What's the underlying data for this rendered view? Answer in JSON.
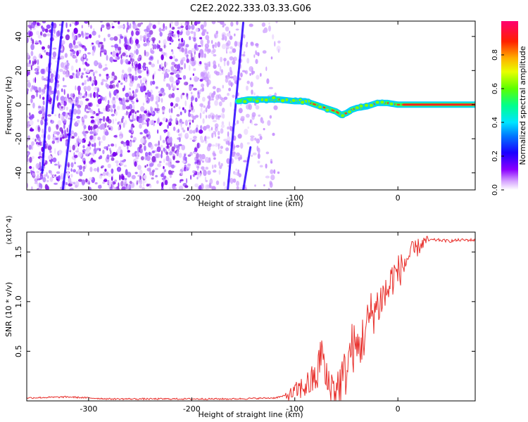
{
  "figure": {
    "title": "C2E2.2022.333.03.33.G06"
  },
  "chart_data": [
    {
      "type": "heatmap",
      "xlabel": "Height of straight line (km)",
      "ylabel": "Frequency (Hz)",
      "xlim": [
        -360,
        75
      ],
      "ylim": [
        -50,
        49
      ],
      "xticks": [
        "-300",
        "-200",
        "-100",
        "0"
      ],
      "xtick_values": [
        -300,
        -200,
        -100,
        0
      ],
      "yticks": [
        "40",
        "20",
        "0",
        "-20",
        "-40"
      ],
      "ytick_values": [
        40,
        20,
        0,
        -20,
        -40
      ],
      "colorbar": {
        "label": "Normalized spectral amplitude",
        "range": [
          0,
          1
        ],
        "ticks": [
          "0.0",
          "0.2",
          "0.4",
          "0.6",
          "0.8"
        ],
        "tick_values": [
          0.0,
          0.2,
          0.4,
          0.6,
          0.8
        ],
        "colormap": "rainbow (white-violet-blue-cyan-green-yellow-red-magenta)"
      },
      "features": {
        "main_signal_track": {
          "x": [
            -155,
            -145,
            -130,
            -115,
            -100,
            -90,
            -80,
            -70,
            -60,
            -55,
            -50,
            -45,
            -40,
            -30,
            -20,
            -10,
            0,
            20,
            40,
            60,
            75
          ],
          "y": [
            2,
            3,
            3,
            3,
            2,
            2,
            0,
            -2,
            -4,
            -6,
            -5,
            -3,
            -2,
            -1,
            1,
            1,
            0,
            0,
            0,
            0,
            0
          ]
        },
        "noise_region_x": [
          -360,
          -115
        ]
      }
    },
    {
      "type": "line",
      "xlabel": "Height of straight line (km)",
      "ylabel": "SNR (10 * v/v)",
      "y_multiplier": "(x10^4)",
      "xlim": [
        -360,
        75
      ],
      "ylim": [
        0,
        1.7
      ],
      "xticks": [
        "-300",
        "-200",
        "-100",
        "0"
      ],
      "xtick_values": [
        -300,
        -200,
        -100,
        0
      ],
      "yticks": [
        "0.5",
        "1.0",
        "1.5"
      ],
      "ytick_values": [
        0.5,
        1.0,
        1.5
      ],
      "series": [
        {
          "color": "#e8302c",
          "x": [
            -360,
            -320,
            -280,
            -240,
            -200,
            -160,
            -120,
            -105,
            -95,
            -85,
            -78,
            -74,
            -70,
            -65,
            -60,
            -55,
            -50,
            -45,
            -40,
            -35,
            -30,
            -25,
            -20,
            -15,
            -10,
            -5,
            0,
            5,
            10,
            15,
            20,
            25,
            30,
            40,
            50,
            60,
            75
          ],
          "y": [
            0.03,
            0.04,
            0.02,
            0.02,
            0.02,
            0.02,
            0.03,
            0.06,
            0.12,
            0.18,
            0.25,
            0.55,
            0.2,
            0.15,
            0.12,
            0.2,
            0.3,
            0.55,
            0.5,
            0.6,
            0.75,
            0.9,
            0.95,
            1.05,
            1.1,
            1.25,
            1.3,
            1.35,
            1.45,
            1.5,
            1.55,
            1.6,
            1.62,
            1.62,
            1.61,
            1.62,
            1.62
          ]
        }
      ]
    }
  ]
}
